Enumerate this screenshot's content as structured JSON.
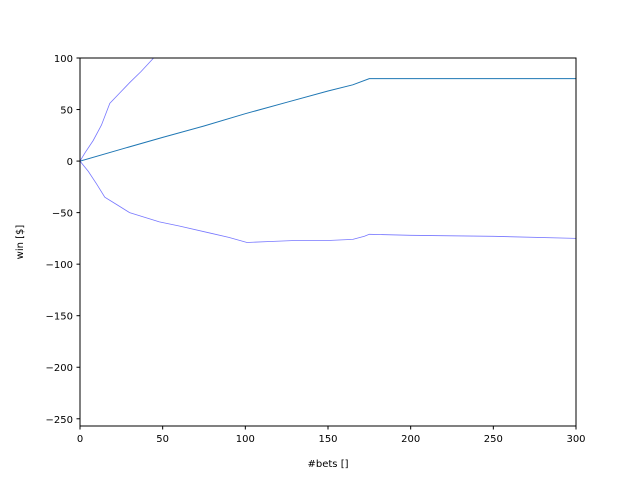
{
  "chart_data": {
    "type": "line",
    "xlabel": "#bets []",
    "ylabel": "win [$]",
    "xlim": [
      0,
      300
    ],
    "ylim": [
      -257,
      100
    ],
    "xticks": [
      0,
      50,
      100,
      150,
      200,
      250,
      300
    ],
    "yticks": [
      100,
      50,
      0,
      -50,
      -100,
      -150,
      -200,
      -250
    ],
    "ytick_labels": [
      "100",
      "50",
      "0",
      "−50",
      "−100",
      "−150",
      "−200",
      "−250"
    ],
    "grid": false,
    "series": [
      {
        "color": "#1f77b4",
        "x": [
          0,
          25,
          50,
          75,
          100,
          125,
          150,
          165,
          175,
          200,
          250,
          300
        ],
        "y": [
          0,
          11.5,
          23,
          34,
          46,
          57,
          68,
          74,
          80,
          80,
          80,
          80
        ]
      },
      {
        "color": "#7777ff",
        "x": [
          0,
          3,
          8,
          13,
          18,
          24,
          30,
          37,
          44.5
        ],
        "y": [
          0,
          8,
          20,
          35,
          56,
          66,
          76,
          87,
          100
        ]
      },
      {
        "color": "#7777ff",
        "x": [
          0,
          5,
          10,
          15,
          22,
          30,
          40,
          48,
          60,
          79,
          90,
          101,
          115,
          130,
          150,
          165,
          172,
          175,
          200,
          250,
          300
        ],
        "y": [
          0,
          -10,
          -22,
          -35,
          -42,
          -50,
          -55,
          -59,
          -63,
          -70,
          -74,
          -79,
          -78,
          -77,
          -77,
          -76,
          -73,
          -71,
          -72,
          -73,
          -75
        ]
      }
    ]
  }
}
